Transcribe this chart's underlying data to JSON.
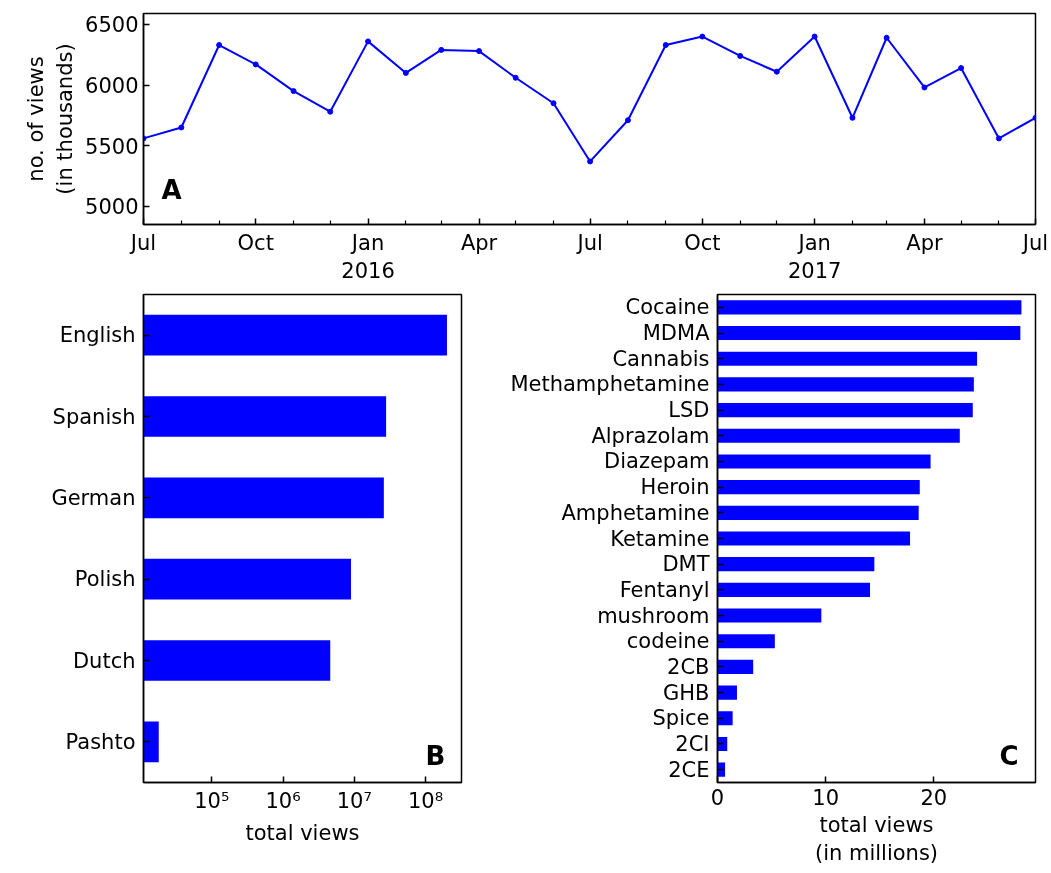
{
  "chart_data": [
    {
      "type": "line",
      "ylabel": "no. of views\n(in thousands)",
      "annotations": [
        "A"
      ],
      "x": [
        "2015-07",
        "2015-08",
        "2015-09",
        "2015-10",
        "2015-11",
        "2015-12",
        "2016-01",
        "2016-02",
        "2016-03",
        "2016-04",
        "2016-05",
        "2016-06",
        "2016-07",
        "2016-08",
        "2016-09",
        "2016-10",
        "2016-11",
        "2016-12",
        "2017-01",
        "2017-02",
        "2017-03",
        "2017-04",
        "2017-05",
        "2017-06",
        "2017-07"
      ],
      "series": [
        {
          "color": "#0000ff",
          "values": [
            5560,
            5650,
            6330,
            6170,
            5950,
            5780,
            6360,
            6100,
            6290,
            6280,
            6060,
            5850,
            5370,
            5710,
            6330,
            6400,
            6240,
            6110,
            6400,
            5730,
            6390,
            5980,
            6140,
            5560,
            5730
          ]
        }
      ],
      "xlim": [
        "2015-07",
        "2017-07"
      ],
      "ylim": [
        4850,
        6590
      ],
      "yticks": [
        5000,
        5500,
        6000,
        6500
      ],
      "xticks": [
        {
          "value": "2015-07",
          "label": "Jul"
        },
        {
          "value": "2015-08",
          "label": null
        },
        {
          "value": "2015-09",
          "label": null
        },
        {
          "value": "2015-10",
          "label": "Oct"
        },
        {
          "value": "2015-11",
          "label": null
        },
        {
          "value": "2015-12",
          "label": null
        },
        {
          "value": "2016-01",
          "label": "Jan\n2016"
        },
        {
          "value": "2016-02",
          "label": null
        },
        {
          "value": "2016-03",
          "label": null
        },
        {
          "value": "2016-04",
          "label": "Apr"
        },
        {
          "value": "2016-05",
          "label": null
        },
        {
          "value": "2016-06",
          "label": null
        },
        {
          "value": "2016-07",
          "label": "Jul"
        },
        {
          "value": "2016-08",
          "label": null
        },
        {
          "value": "2016-09",
          "label": null
        },
        {
          "value": "2016-10",
          "label": "Oct"
        },
        {
          "value": "2016-11",
          "label": null
        },
        {
          "value": "2016-12",
          "label": null
        },
        {
          "value": "2017-01",
          "label": "Jan\n2017"
        },
        {
          "value": "2017-02",
          "label": null
        },
        {
          "value": "2017-03",
          "label": null
        },
        {
          "value": "2017-04",
          "label": "Apr"
        },
        {
          "value": "2017-05",
          "label": null
        },
        {
          "value": "2017-06",
          "label": null
        },
        {
          "value": "2017-07",
          "label": "Jul"
        }
      ],
      "marker": "circle",
      "grid": false
    },
    {
      "type": "bar",
      "orientation": "horizontal",
      "log": "x",
      "xlabel": "total views",
      "annotations": [
        "B"
      ],
      "categories": [
        "English",
        "Spanish",
        "German",
        "Polish",
        "Dutch",
        "Pashto"
      ],
      "values": [
        200000000,
        28000000,
        26000000,
        9000000,
        4600000,
        18000
      ],
      "color": "#0000ff",
      "xlim": [
        11000,
        320000000
      ],
      "xticks": [
        {
          "value": 100000,
          "label": "10⁵"
        },
        {
          "value": 1000000,
          "label": "10⁶"
        },
        {
          "value": 10000000,
          "label": "10⁷"
        },
        {
          "value": 100000000,
          "label": "10⁸"
        }
      ],
      "grid": false
    },
    {
      "type": "bar",
      "orientation": "horizontal",
      "xlabel": "total views\n(in millions)",
      "annotations": [
        "C"
      ],
      "categories": [
        "Cocaine",
        "MDMA",
        "Cannabis",
        "Methamphetamine",
        "LSD",
        "Alprazolam",
        "Diazepam",
        "Heroin",
        "Amphetamine",
        "Ketamine",
        "DMT",
        "Fentanyl",
        "mushroom",
        "codeine",
        "2CB",
        "GHB",
        "Spice",
        "2CI",
        "2CE"
      ],
      "values": [
        28.1,
        28.0,
        24.0,
        23.7,
        23.6,
        22.4,
        19.7,
        18.7,
        18.6,
        17.8,
        14.5,
        14.1,
        9.6,
        5.3,
        3.3,
        1.8,
        1.4,
        0.9,
        0.7
      ],
      "color": "#0000ff",
      "xlim": [
        0,
        29.4
      ],
      "xticks": [
        0,
        10,
        20
      ],
      "grid": false
    }
  ]
}
